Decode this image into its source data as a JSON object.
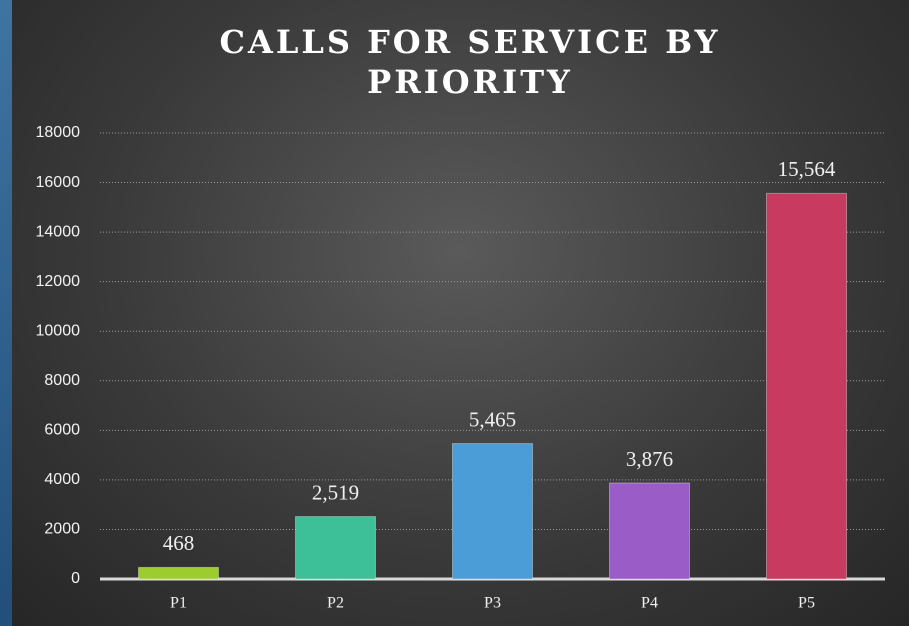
{
  "chart_data": {
    "type": "bar",
    "title": "CALLS FOR SERVICE BY PRIORITY",
    "categories": [
      "P1",
      "P2",
      "P3",
      "P4",
      "P5"
    ],
    "values": [
      468,
      2519,
      5465,
      3876,
      15564
    ],
    "value_labels": [
      "468",
      "2,519",
      "5,465",
      "3,876",
      "15,564"
    ],
    "colors": [
      "#9ccc2e",
      "#3dbf98",
      "#4a9dd6",
      "#9a5cc6",
      "#c93a60"
    ],
    "ylim": [
      0,
      18000
    ],
    "yticks": [
      0,
      2000,
      4000,
      6000,
      8000,
      10000,
      12000,
      14000,
      16000,
      18000
    ],
    "grid": true
  }
}
